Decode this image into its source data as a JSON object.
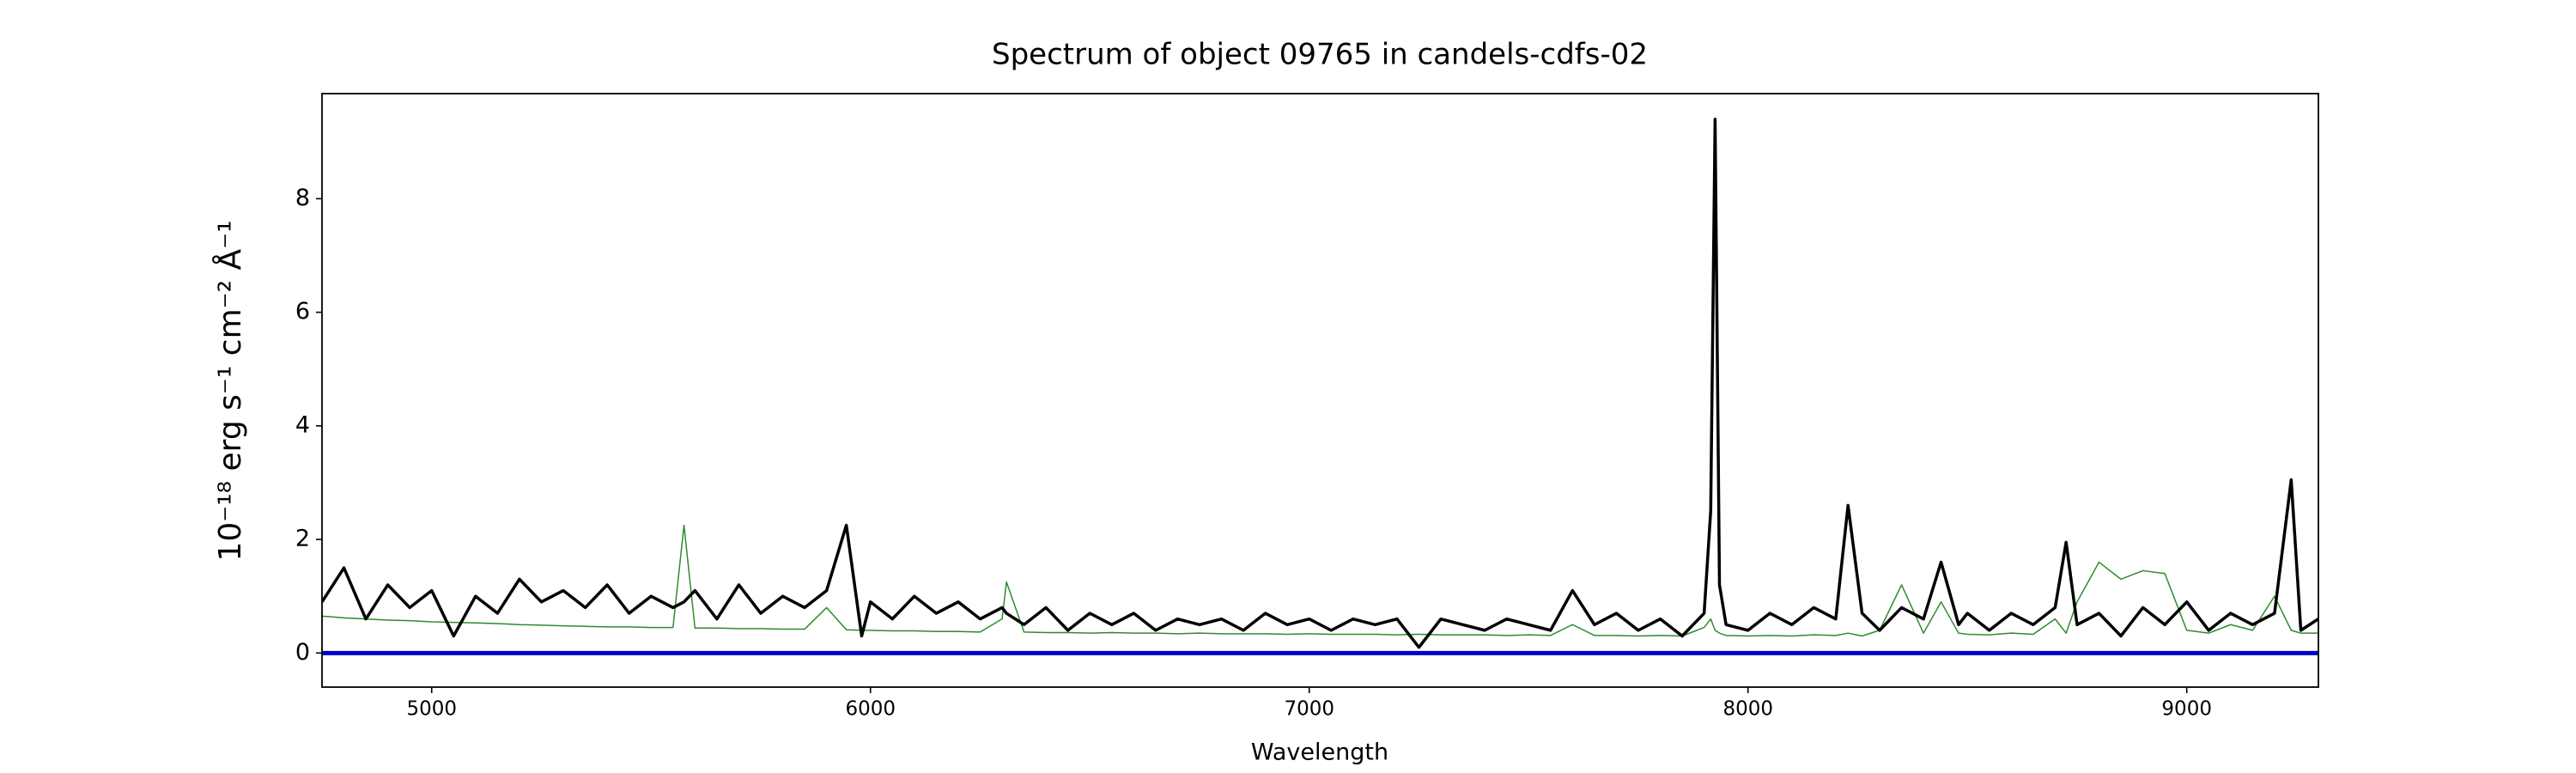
{
  "chart_data": {
    "type": "line",
    "title": "Spectrum of object 09765 in candels-cdfs-02",
    "xlabel": "Wavelength",
    "ylabel": "10⁻¹⁸ erg s⁻¹ cm⁻² Å⁻¹",
    "x": [
      4750,
      4800,
      4850,
      4900,
      4950,
      5000,
      5050,
      5100,
      5150,
      5200,
      5250,
      5300,
      5350,
      5400,
      5450,
      5500,
      5550,
      5575,
      5600,
      5650,
      5700,
      5750,
      5800,
      5850,
      5900,
      5945,
      5980,
      6000,
      6050,
      6100,
      6150,
      6200,
      6250,
      6300,
      6310,
      6350,
      6400,
      6450,
      6500,
      6550,
      6600,
      6650,
      6700,
      6750,
      6800,
      6850,
      6900,
      6950,
      7000,
      7050,
      7100,
      7150,
      7200,
      7250,
      7300,
      7350,
      7400,
      7450,
      7500,
      7550,
      7600,
      7650,
      7700,
      7750,
      7800,
      7850,
      7900,
      7915,
      7925,
      7935,
      7950,
      8000,
      8050,
      8100,
      8150,
      8200,
      8228,
      8260,
      8300,
      8350,
      8400,
      8440,
      8480,
      8500,
      8550,
      8600,
      8650,
      8700,
      8725,
      8750,
      8800,
      8850,
      8900,
      8950,
      9000,
      9050,
      9100,
      9150,
      9200,
      9238,
      9260,
      9300
    ],
    "series": [
      {
        "color": "#2e8b2e",
        "width": 1.5,
        "values": [
          0.65,
          0.62,
          0.6,
          0.58,
          0.57,
          0.55,
          0.54,
          0.53,
          0.52,
          0.5,
          0.49,
          0.48,
          0.47,
          0.46,
          0.46,
          0.45,
          0.45,
          2.25,
          0.44,
          0.44,
          0.43,
          0.43,
          0.42,
          0.42,
          0.8,
          0.41,
          0.4,
          0.4,
          0.39,
          0.39,
          0.38,
          0.38,
          0.37,
          0.6,
          1.25,
          0.37,
          0.36,
          0.36,
          0.35,
          0.36,
          0.35,
          0.35,
          0.34,
          0.35,
          0.34,
          0.34,
          0.34,
          0.33,
          0.34,
          0.33,
          0.33,
          0.33,
          0.32,
          0.33,
          0.32,
          0.32,
          0.32,
          0.31,
          0.32,
          0.31,
          0.5,
          0.31,
          0.31,
          0.3,
          0.31,
          0.3,
          0.45,
          0.6,
          0.4,
          0.35,
          0.31,
          0.3,
          0.31,
          0.3,
          0.32,
          0.31,
          0.35,
          0.3,
          0.4,
          1.2,
          0.35,
          0.9,
          0.35,
          0.33,
          0.32,
          0.35,
          0.33,
          0.6,
          0.35,
          0.9,
          1.6,
          1.3,
          1.45,
          1.4,
          0.4,
          0.35,
          0.5,
          0.4,
          1.0,
          0.4,
          0.35,
          0.35
        ]
      },
      {
        "color": "#000000",
        "width": 3.5,
        "values": [
          0.9,
          1.5,
          0.6,
          1.2,
          0.8,
          1.1,
          0.3,
          1.0,
          0.7,
          1.3,
          0.9,
          1.1,
          0.8,
          1.2,
          0.7,
          1.0,
          0.8,
          0.9,
          1.1,
          0.6,
          1.2,
          0.7,
          1.0,
          0.8,
          1.1,
          2.25,
          0.3,
          0.9,
          0.6,
          1.0,
          0.7,
          0.9,
          0.6,
          0.8,
          0.7,
          0.5,
          0.8,
          0.4,
          0.7,
          0.5,
          0.7,
          0.4,
          0.6,
          0.5,
          0.6,
          0.4,
          0.7,
          0.5,
          0.6,
          0.4,
          0.6,
          0.5,
          0.6,
          0.1,
          0.6,
          0.5,
          0.4,
          0.6,
          0.5,
          0.4,
          1.1,
          0.5,
          0.7,
          0.4,
          0.6,
          0.3,
          0.7,
          2.5,
          9.4,
          1.2,
          0.5,
          0.4,
          0.7,
          0.5,
          0.8,
          0.6,
          2.6,
          0.7,
          0.4,
          0.8,
          0.6,
          1.6,
          0.5,
          0.7,
          0.4,
          0.7,
          0.5,
          0.8,
          1.95,
          0.5,
          0.7,
          0.3,
          0.8,
          0.5,
          0.9,
          0.4,
          0.7,
          0.5,
          0.7,
          3.05,
          0.4,
          0.6
        ]
      },
      {
        "color": "#0000cc",
        "width": 5,
        "x": [
          4750,
          9300
        ],
        "values": [
          0,
          0
        ]
      }
    ],
    "xlim": [
      4750,
      9300
    ],
    "ylim": [
      -0.6,
      9.85
    ],
    "xticks": [
      5000,
      6000,
      7000,
      8000,
      9000
    ],
    "yticks": [
      0,
      2,
      4,
      6,
      8
    ]
  }
}
